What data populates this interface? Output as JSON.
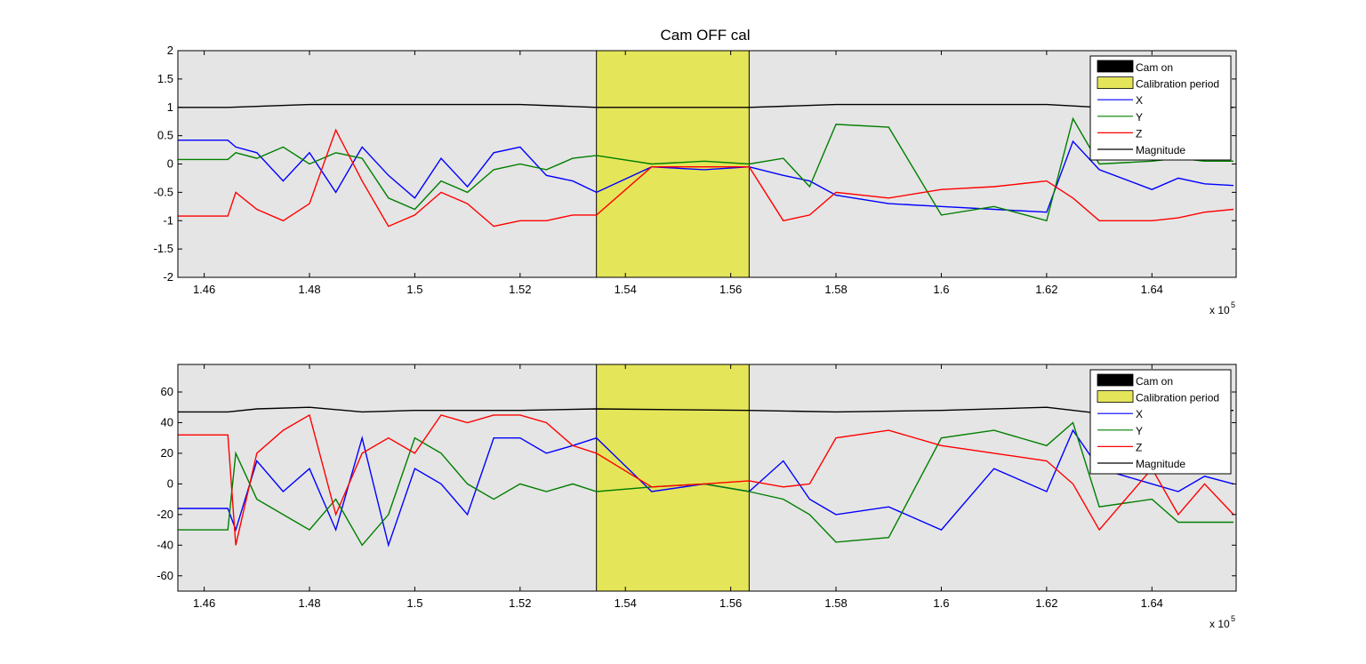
{
  "figure": {
    "title": "Cam OFF cal"
  },
  "legend_items": [
    {
      "label": "Cam on",
      "kind": "patch",
      "color": "#000000"
    },
    {
      "label": "Calibration period",
      "kind": "patch",
      "color": "#e5e55a"
    },
    {
      "label": "X",
      "kind": "line",
      "color": "#0000ff"
    },
    {
      "label": "Y",
      "kind": "line",
      "color": "#007f00"
    },
    {
      "label": "Z",
      "kind": "line",
      "color": "#ff0000"
    },
    {
      "label": "Magnitude",
      "kind": "line",
      "color": "#000000"
    }
  ],
  "colors": {
    "axes_background": "#e5e5e5",
    "calibration": "#e5e55a",
    "x": "#0000ff",
    "y": "#007f00",
    "z": "#ff0000",
    "magnitude": "#000000"
  },
  "chart_data": [
    {
      "type": "line",
      "title": "Cam OFF cal",
      "xlim": [
        1.455,
        1.656
      ],
      "ylim": [
        -2,
        2
      ],
      "x_ticks": [
        1.46,
        1.48,
        1.5,
        1.52,
        1.54,
        1.56,
        1.58,
        1.6,
        1.62,
        1.64
      ],
      "x_tick_labels": [
        "1.46",
        "1.48",
        "1.5",
        "1.52",
        "1.54",
        "1.56",
        "1.58",
        "1.6",
        "1.62",
        "1.64"
      ],
      "x_exponent_label": "x 10",
      "x_exponent": "5",
      "y_ticks": [
        -2,
        -1.5,
        -1,
        -0.5,
        0,
        0.5,
        1,
        1.5,
        2
      ],
      "y_tick_labels": [
        "-2",
        "-1.5",
        "-1",
        "-0.5",
        "0",
        "0.5",
        "1",
        "1.5",
        "2"
      ],
      "grid": false,
      "legend_position": "top-right",
      "calibration_period": [
        1.5345,
        1.5635
      ],
      "series": [
        {
          "name": "X",
          "color": "#0000ff",
          "x": [
            1.455,
            1.4645,
            1.466,
            1.47,
            1.475,
            1.48,
            1.485,
            1.49,
            1.495,
            1.5,
            1.505,
            1.51,
            1.515,
            1.52,
            1.525,
            1.53,
            1.5345,
            1.545,
            1.555,
            1.5635,
            1.57,
            1.575,
            1.58,
            1.59,
            1.6,
            1.61,
            1.62,
            1.625,
            1.63,
            1.64,
            1.645,
            1.65,
            1.6555
          ],
          "y": [
            0.42,
            0.42,
            0.3,
            0.2,
            -0.3,
            0.2,
            -0.5,
            0.3,
            -0.2,
            -0.6,
            0.1,
            -0.4,
            0.2,
            0.3,
            -0.2,
            -0.3,
            -0.5,
            -0.05,
            -0.1,
            -0.05,
            -0.2,
            -0.3,
            -0.55,
            -0.7,
            -0.75,
            -0.8,
            -0.85,
            0.4,
            -0.1,
            -0.45,
            -0.25,
            -0.35,
            -0.38
          ]
        },
        {
          "name": "Y",
          "color": "#007f00",
          "x": [
            1.455,
            1.4645,
            1.466,
            1.47,
            1.475,
            1.48,
            1.485,
            1.49,
            1.495,
            1.5,
            1.505,
            1.51,
            1.515,
            1.52,
            1.525,
            1.53,
            1.5345,
            1.545,
            1.555,
            1.5635,
            1.57,
            1.575,
            1.58,
            1.59,
            1.6,
            1.61,
            1.62,
            1.625,
            1.63,
            1.64,
            1.645,
            1.65,
            1.6555
          ],
          "y": [
            0.08,
            0.08,
            0.2,
            0.1,
            0.3,
            0.0,
            0.2,
            0.1,
            -0.6,
            -0.8,
            -0.3,
            -0.5,
            -0.1,
            0.0,
            -0.1,
            0.1,
            0.15,
            0.0,
            0.05,
            0.0,
            0.1,
            -0.4,
            0.7,
            0.65,
            -0.9,
            -0.75,
            -1.0,
            0.8,
            0.0,
            0.05,
            0.1,
            0.05,
            0.05
          ]
        },
        {
          "name": "Z",
          "color": "#ff0000",
          "x": [
            1.455,
            1.4645,
            1.466,
            1.47,
            1.475,
            1.48,
            1.485,
            1.49,
            1.495,
            1.5,
            1.505,
            1.51,
            1.515,
            1.52,
            1.525,
            1.53,
            1.5345,
            1.545,
            1.555,
            1.5635,
            1.57,
            1.575,
            1.58,
            1.59,
            1.6,
            1.61,
            1.62,
            1.625,
            1.63,
            1.64,
            1.645,
            1.65,
            1.6555
          ],
          "y": [
            -0.92,
            -0.92,
            -0.5,
            -0.8,
            -1.0,
            -0.7,
            0.6,
            -0.3,
            -1.1,
            -0.9,
            -0.5,
            -0.7,
            -1.1,
            -1.0,
            -1.0,
            -0.9,
            -0.9,
            -0.05,
            -0.05,
            -0.05,
            -1.0,
            -0.9,
            -0.5,
            -0.6,
            -0.45,
            -0.4,
            -0.3,
            -0.6,
            -1.0,
            -1.0,
            -0.95,
            -0.85,
            -0.8
          ]
        },
        {
          "name": "Magnitude",
          "color": "#000000",
          "x": [
            1.455,
            1.4645,
            1.48,
            1.5,
            1.52,
            1.5345,
            1.5635,
            1.58,
            1.6,
            1.62,
            1.63,
            1.64,
            1.65,
            1.6555
          ],
          "y": [
            1.0,
            1.0,
            1.05,
            1.05,
            1.05,
            1.0,
            1.0,
            1.05,
            1.05,
            1.05,
            1.0,
            1.0,
            1.0,
            1.0
          ]
        }
      ]
    },
    {
      "type": "line",
      "title": "",
      "xlim": [
        1.455,
        1.656
      ],
      "ylim": [
        -70,
        78
      ],
      "x_ticks": [
        1.46,
        1.48,
        1.5,
        1.52,
        1.54,
        1.56,
        1.58,
        1.6,
        1.62,
        1.64
      ],
      "x_tick_labels": [
        "1.46",
        "1.48",
        "1.5",
        "1.52",
        "1.54",
        "1.56",
        "1.58",
        "1.6",
        "1.62",
        "1.64"
      ],
      "x_exponent_label": "x 10",
      "x_exponent": "5",
      "y_ticks": [
        -60,
        -40,
        -20,
        0,
        20,
        40,
        60
      ],
      "y_tick_labels": [
        "-60",
        "-40",
        "-20",
        "0",
        "20",
        "40",
        "60"
      ],
      "grid": false,
      "legend_position": "top-right",
      "calibration_period": [
        1.5345,
        1.5635
      ],
      "series": [
        {
          "name": "X",
          "color": "#0000ff",
          "x": [
            1.455,
            1.4645,
            1.466,
            1.47,
            1.475,
            1.48,
            1.485,
            1.49,
            1.495,
            1.5,
            1.505,
            1.51,
            1.515,
            1.52,
            1.525,
            1.53,
            1.5345,
            1.545,
            1.555,
            1.5635,
            1.57,
            1.575,
            1.58,
            1.59,
            1.6,
            1.61,
            1.62,
            1.625,
            1.63,
            1.64,
            1.645,
            1.65,
            1.6555
          ],
          "y": [
            -16,
            -16,
            -30,
            15,
            -5,
            10,
            -30,
            30,
            -40,
            10,
            0,
            -20,
            30,
            30,
            20,
            25,
            30,
            -5,
            0,
            -5,
            15,
            -10,
            -20,
            -15,
            -30,
            10,
            -5,
            35,
            10,
            0,
            -5,
            5,
            0
          ]
        },
        {
          "name": "Y",
          "color": "#007f00",
          "x": [
            1.455,
            1.4645,
            1.466,
            1.47,
            1.475,
            1.48,
            1.485,
            1.49,
            1.495,
            1.5,
            1.505,
            1.51,
            1.515,
            1.52,
            1.525,
            1.53,
            1.5345,
            1.545,
            1.555,
            1.5635,
            1.57,
            1.575,
            1.58,
            1.59,
            1.6,
            1.61,
            1.62,
            1.625,
            1.63,
            1.64,
            1.645,
            1.65,
            1.6555
          ],
          "y": [
            -30,
            -30,
            20,
            -10,
            -20,
            -30,
            -10,
            -40,
            -20,
            30,
            20,
            0,
            -10,
            0,
            -5,
            0,
            -5,
            -2,
            0,
            -5,
            -10,
            -20,
            -38,
            -35,
            30,
            35,
            25,
            40,
            -15,
            -10,
            -25,
            -25,
            -25
          ]
        },
        {
          "name": "Z",
          "color": "#ff0000",
          "x": [
            1.455,
            1.4645,
            1.466,
            1.47,
            1.475,
            1.48,
            1.485,
            1.49,
            1.495,
            1.5,
            1.505,
            1.51,
            1.515,
            1.52,
            1.525,
            1.53,
            1.5345,
            1.545,
            1.555,
            1.5635,
            1.57,
            1.575,
            1.58,
            1.59,
            1.6,
            1.61,
            1.62,
            1.625,
            1.63,
            1.64,
            1.645,
            1.65,
            1.6555
          ],
          "y": [
            32,
            32,
            -40,
            20,
            35,
            45,
            -20,
            20,
            30,
            20,
            45,
            40,
            45,
            45,
            40,
            25,
            20,
            -2,
            0,
            2,
            -2,
            0,
            30,
            35,
            25,
            20,
            15,
            0,
            -30,
            10,
            -20,
            0,
            -20
          ]
        },
        {
          "name": "Magnitude",
          "color": "#000000",
          "x": [
            1.455,
            1.4645,
            1.47,
            1.48,
            1.49,
            1.5,
            1.52,
            1.5345,
            1.5635,
            1.58,
            1.6,
            1.62,
            1.63,
            1.64,
            1.65,
            1.6555
          ],
          "y": [
            47,
            47,
            49,
            50,
            47,
            48,
            48,
            49,
            48,
            47,
            48,
            50,
            46,
            48,
            48,
            48
          ]
        }
      ]
    }
  ]
}
